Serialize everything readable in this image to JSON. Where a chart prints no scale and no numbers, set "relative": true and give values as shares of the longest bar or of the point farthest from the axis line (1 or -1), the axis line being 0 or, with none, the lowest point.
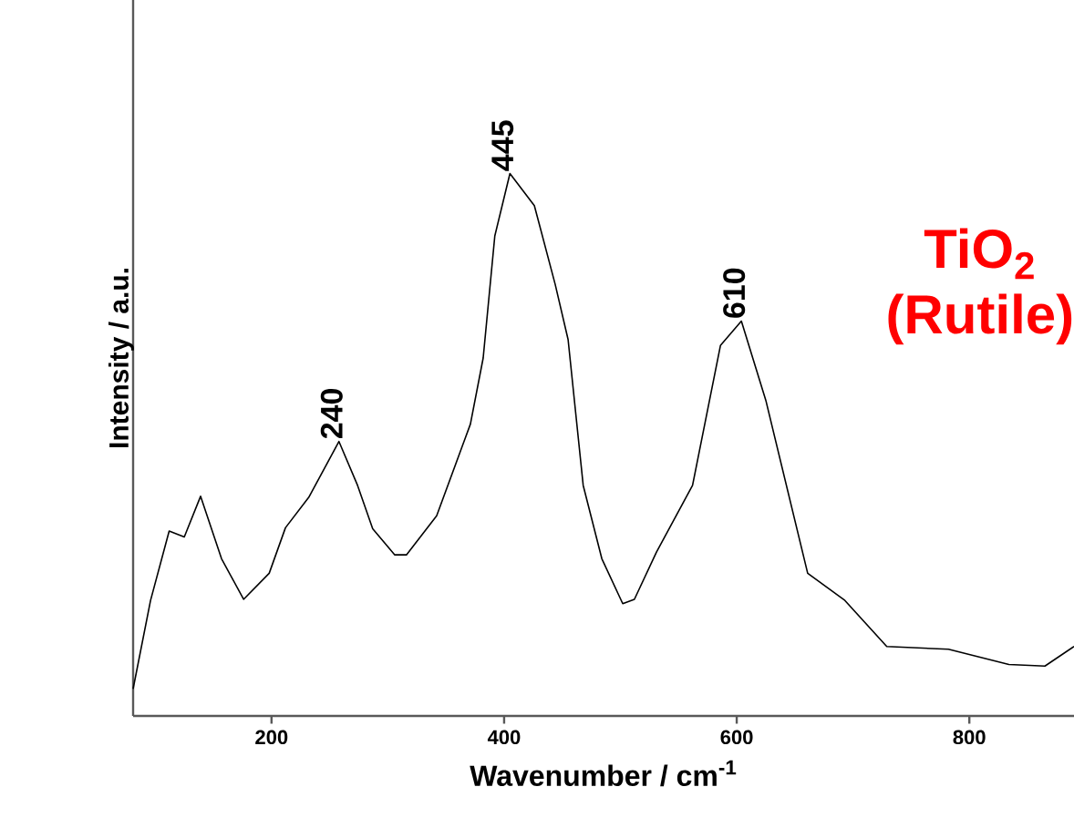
{
  "chart_data": {
    "type": "line",
    "relative": true,
    "xlabel": "Wavenumber / cm$^{-1}$",
    "ylabel": "Intensity / a.u.",
    "xlim": [
      81,
      890
    ],
    "xticks": [
      200,
      400,
      600,
      800
    ],
    "grid": false,
    "marker": "none",
    "line_style": "solid",
    "series": [
      {
        "color": "#000000",
        "x": [
          81,
          96,
          112,
          125,
          139,
          157,
          176,
          198,
          212,
          232,
          258,
          274,
          287,
          306,
          316,
          342,
          371,
          382,
          392,
          405,
          426,
          444,
          455,
          468,
          484,
          502,
          512,
          531,
          562,
          586,
          604,
          625,
          661,
          693,
          729,
          782,
          834,
          865,
          890
        ],
        "values": [
          0.05,
          0.213,
          0.341,
          0.33,
          0.405,
          0.29,
          0.215,
          0.263,
          0.347,
          0.403,
          0.506,
          0.425,
          0.345,
          0.297,
          0.297,
          0.369,
          0.538,
          0.66,
          0.885,
          1.0,
          0.941,
          0.795,
          0.694,
          0.425,
          0.29,
          0.207,
          0.215,
          0.302,
          0.425,
          0.683,
          0.728,
          0.582,
          0.263,
          0.213,
          0.128,
          0.123,
          0.095,
          0.092,
          0.128
        ]
      }
    ],
    "annotations": [
      {
        "text": "240",
        "x": 258,
        "y": 0.506
      },
      {
        "text": "445",
        "x": 405,
        "y": 1.0
      },
      {
        "text": "610",
        "x": 604,
        "y": 0.728
      },
      "TiO$_{2}$ (Rutile)"
    ]
  }
}
